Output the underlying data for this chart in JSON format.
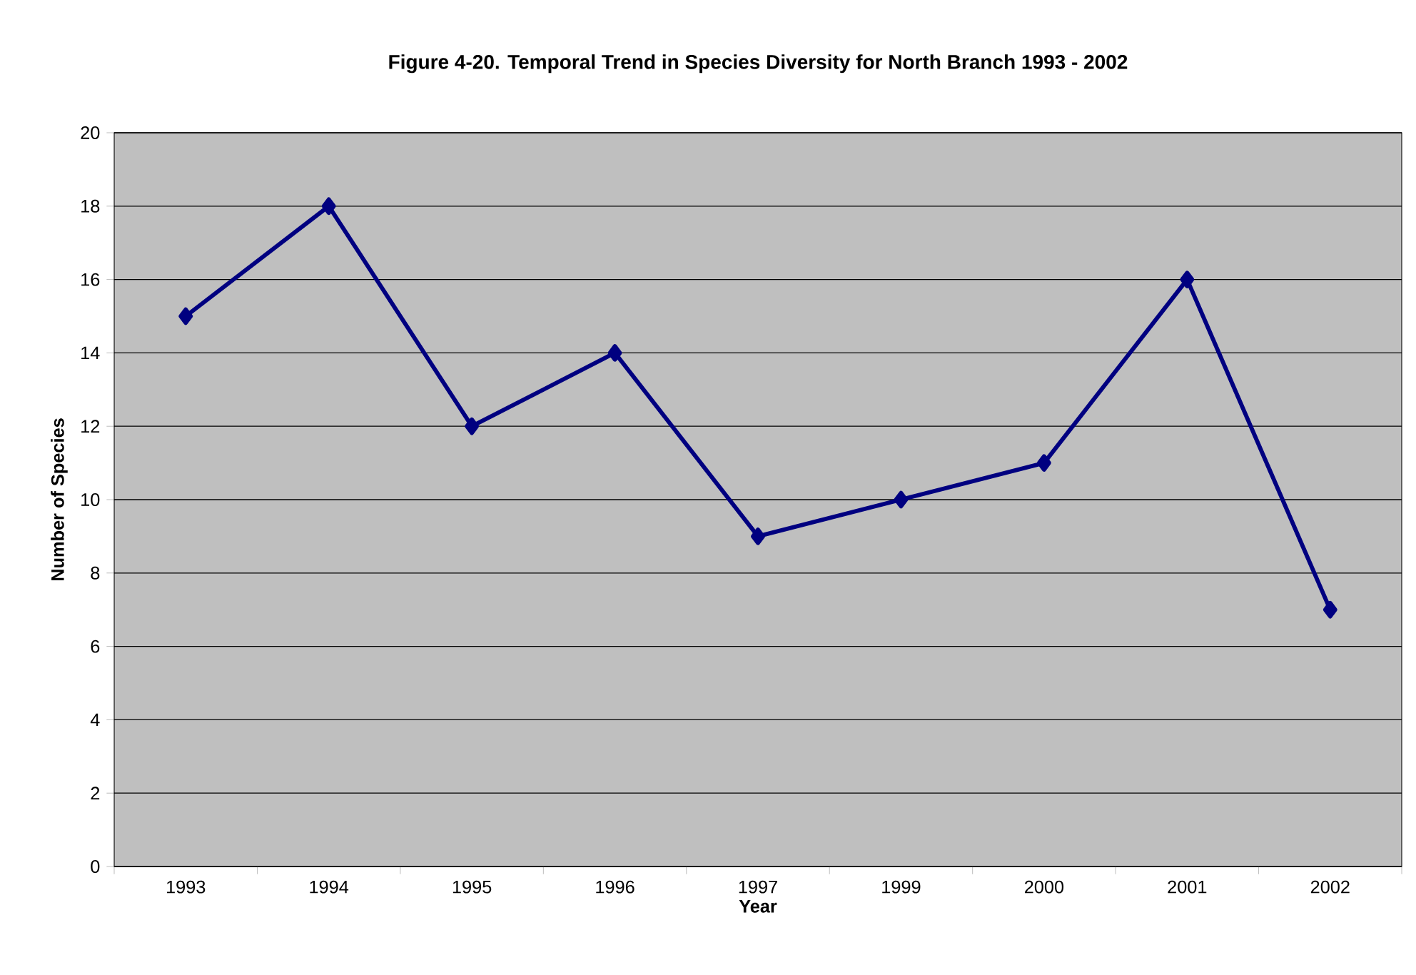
{
  "chart_data": {
    "type": "line",
    "title": "Figure 4-20.  Temporal Trend in Species Diversity for North Branch 1993 - 2002",
    "xlabel": "Year",
    "ylabel": "Number of Species",
    "categories": [
      "1993",
      "1994",
      "1995",
      "1996",
      "1997",
      "1999",
      "2000",
      "2001",
      "2002"
    ],
    "series": [
      {
        "color": "#000080",
        "values": [
          15,
          18,
          12,
          14,
          9,
          10,
          11,
          16,
          7
        ]
      }
    ],
    "ylim": [
      0,
      20
    ],
    "yticks": [
      0,
      2,
      4,
      6,
      8,
      10,
      12,
      14,
      16,
      18,
      20
    ],
    "grid": "y",
    "marker": "diamond",
    "line_style": "solid"
  }
}
